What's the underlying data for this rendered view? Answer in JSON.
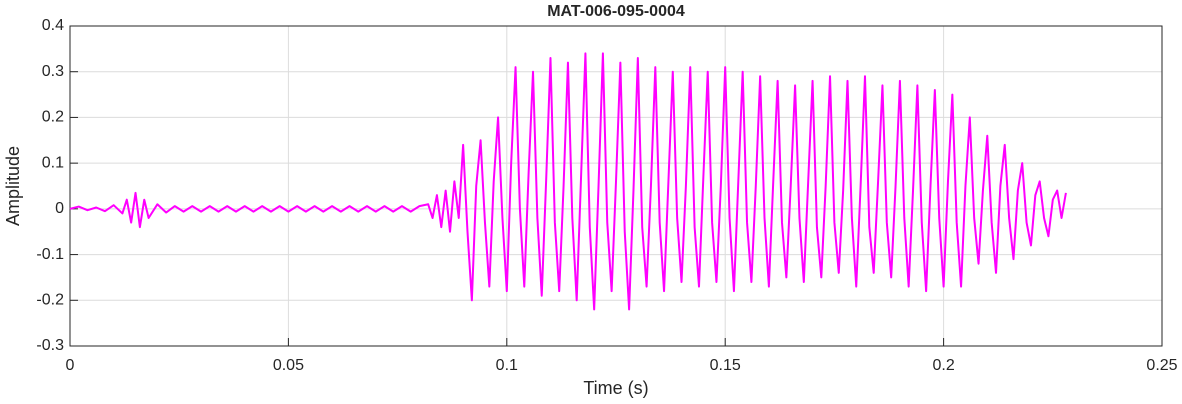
{
  "chart_data": {
    "type": "line",
    "title": "MAT-006-095-0004",
    "xlabel": "Time (s)",
    "ylabel": "Amplitude",
    "color": "#ff00ff",
    "grid": true,
    "xlim": [
      0,
      0.25
    ],
    "xticks": [
      0,
      0.05,
      0.1,
      0.15,
      0.2,
      0.25
    ],
    "ylim": [
      -0.3,
      0.4
    ],
    "yticks": [
      -0.3,
      -0.2,
      -0.1,
      0,
      0.1,
      0.2,
      0.3,
      0.4
    ],
    "x": [
      0,
      0.002,
      0.004,
      0.006,
      0.008,
      0.01,
      0.012,
      0.013,
      0.014,
      0.015,
      0.016,
      0.017,
      0.018,
      0.02,
      0.022,
      0.024,
      0.026,
      0.028,
      0.03,
      0.032,
      0.034,
      0.036,
      0.038,
      0.04,
      0.042,
      0.044,
      0.046,
      0.048,
      0.05,
      0.052,
      0.054,
      0.056,
      0.058,
      0.06,
      0.062,
      0.064,
      0.066,
      0.068,
      0.07,
      0.072,
      0.074,
      0.076,
      0.078,
      0.08,
      0.082,
      0.083,
      0.084,
      0.085,
      0.086,
      0.087,
      0.088,
      0.089,
      0.09,
      0.091,
      0.092,
      0.093,
      0.094,
      0.095,
      0.096,
      0.097,
      0.098,
      0.099,
      0.1,
      0.101,
      0.102,
      0.103,
      0.104,
      0.105,
      0.106,
      0.107,
      0.108,
      0.109,
      0.11,
      0.111,
      0.112,
      0.113,
      0.114,
      0.115,
      0.116,
      0.117,
      0.118,
      0.119,
      0.12,
      0.121,
      0.122,
      0.123,
      0.124,
      0.125,
      0.126,
      0.127,
      0.128,
      0.129,
      0.13,
      0.131,
      0.132,
      0.133,
      0.134,
      0.135,
      0.136,
      0.137,
      0.138,
      0.139,
      0.14,
      0.141,
      0.142,
      0.143,
      0.144,
      0.145,
      0.146,
      0.147,
      0.148,
      0.149,
      0.15,
      0.151,
      0.152,
      0.153,
      0.154,
      0.155,
      0.156,
      0.157,
      0.158,
      0.159,
      0.16,
      0.161,
      0.162,
      0.163,
      0.164,
      0.165,
      0.166,
      0.167,
      0.168,
      0.169,
      0.17,
      0.171,
      0.172,
      0.173,
      0.174,
      0.175,
      0.176,
      0.177,
      0.178,
      0.179,
      0.18,
      0.181,
      0.182,
      0.183,
      0.184,
      0.185,
      0.186,
      0.187,
      0.188,
      0.189,
      0.19,
      0.191,
      0.192,
      0.193,
      0.194,
      0.195,
      0.196,
      0.197,
      0.198,
      0.199,
      0.2,
      0.201,
      0.202,
      0.203,
      0.204,
      0.205,
      0.206,
      0.207,
      0.208,
      0.209,
      0.21,
      0.211,
      0.212,
      0.213,
      0.214,
      0.215,
      0.216,
      0.217,
      0.218,
      0.219,
      0.22,
      0.221,
      0.222,
      0.223,
      0.224,
      0.225,
      0.226,
      0.227,
      0.228
    ],
    "series": [
      {
        "name": "Amplitude",
        "color": "#ff00ff",
        "values": [
          0,
          0.005,
          -0.003,
          0.003,
          -0.005,
          0.008,
          -0.01,
          0.02,
          -0.03,
          0.035,
          -0.04,
          0.02,
          -0.02,
          0.01,
          -0.008,
          0.006,
          -0.006,
          0.006,
          -0.006,
          0.006,
          -0.006,
          0.006,
          -0.006,
          0.006,
          -0.006,
          0.006,
          -0.006,
          0.006,
          -0.006,
          0.006,
          -0.006,
          0.006,
          -0.006,
          0.006,
          -0.006,
          0.006,
          -0.006,
          0.006,
          -0.006,
          0.006,
          -0.006,
          0.006,
          -0.006,
          0.006,
          0.01,
          -0.02,
          0.03,
          -0.04,
          0.04,
          -0.05,
          0.06,
          -0.02,
          0.14,
          -0.05,
          -0.2,
          0.05,
          0.15,
          -0.03,
          -0.17,
          0.06,
          0.2,
          -0.02,
          -0.18,
          0.1,
          0.31,
          0,
          -0.17,
          0.08,
          0.3,
          -0.02,
          -0.19,
          0.06,
          0.33,
          -0.03,
          -0.18,
          0.05,
          0.32,
          -0.02,
          -0.2,
          0.07,
          0.34,
          -0.04,
          -0.22,
          0.05,
          0.34,
          -0.03,
          -0.18,
          0.06,
          0.32,
          -0.05,
          -0.22,
          0.04,
          0.33,
          -0.04,
          -0.17,
          0.05,
          0.31,
          -0.03,
          -0.18,
          0.06,
          0.3,
          -0.02,
          -0.16,
          0.05,
          0.31,
          -0.04,
          -0.17,
          0.07,
          0.3,
          -0.03,
          -0.16,
          0.05,
          0.31,
          -0.02,
          -0.18,
          0.06,
          0.3,
          -0.03,
          -0.16,
          0.05,
          0.29,
          -0.02,
          -0.17,
          0.06,
          0.28,
          -0.03,
          -0.15,
          0.05,
          0.27,
          -0.02,
          -0.16,
          0.06,
          0.28,
          -0.04,
          -0.15,
          0.05,
          0.29,
          -0.03,
          -0.14,
          0.04,
          0.28,
          -0.02,
          -0.17,
          0.05,
          0.29,
          -0.04,
          -0.14,
          0.06,
          0.27,
          -0.03,
          -0.15,
          0.05,
          0.28,
          -0.02,
          -0.17,
          0.04,
          0.27,
          -0.03,
          -0.18,
          0.05,
          0.26,
          -0.02,
          -0.17,
          0.06,
          0.25,
          -0.03,
          -0.17,
          0.05,
          0.2,
          -0.02,
          -0.12,
          0.04,
          0.16,
          -0.03,
          -0.14,
          0.05,
          0.14,
          -0.02,
          -0.11,
          0.04,
          0.1,
          -0.03,
          -0.08,
          0.03,
          0.06,
          -0.02,
          -0.06,
          0.02,
          0.04,
          -0.02,
          0.035
        ]
      }
    ]
  }
}
